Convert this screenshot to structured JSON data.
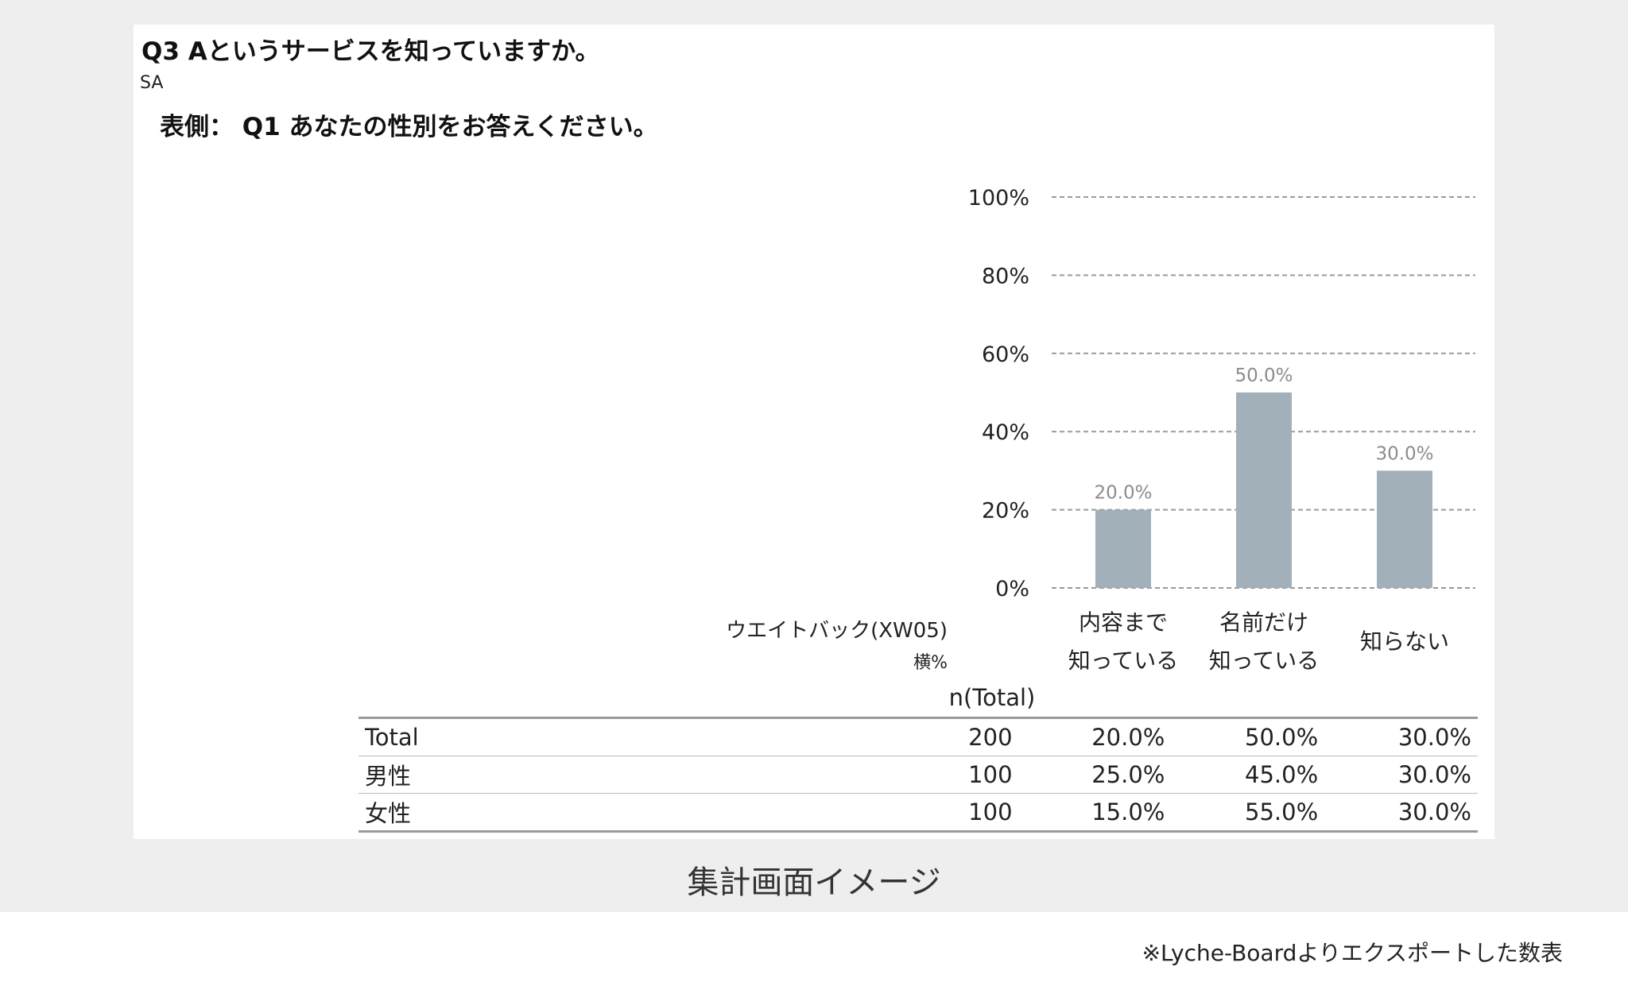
{
  "question": {
    "title": "Q3 Aというサービスを知っていますか。",
    "type": "SA",
    "side_title": "表側：  Q1 あなたの性別をお答えください。"
  },
  "table_header": {
    "weight_label": "ウエイトバック(XW05)",
    "pct_label": "横%",
    "n_label": "n(Total)"
  },
  "chart_data": {
    "type": "bar",
    "categories": [
      "内容まで\n知っている",
      "名前だけ\n知っている",
      "知らない"
    ],
    "values": [
      20.0,
      50.0,
      30.0
    ],
    "data_labels": [
      "20.0%",
      "50.0%",
      "30.0%"
    ],
    "ylim": [
      0,
      100
    ],
    "yticks": [
      0,
      20,
      40,
      60,
      80,
      100
    ],
    "ytick_labels": [
      "0%",
      "20%",
      "40%",
      "60%",
      "80%",
      "100%"
    ],
    "grid": true,
    "bar_color": "#a2b0ba",
    "data_label_color": "#8c8c8c",
    "grid_color": "#9a9a9a"
  },
  "category_labels": [
    [
      "内容まで",
      "知っている"
    ],
    [
      "名前だけ",
      "知っている"
    ],
    [
      "知らない"
    ]
  ],
  "rows": [
    {
      "label": "Total",
      "n": "200",
      "values": [
        "20.0%",
        "50.0%",
        "30.0%"
      ]
    },
    {
      "label": "男性",
      "n": "100",
      "values": [
        "25.0%",
        "45.0%",
        "30.0%"
      ]
    },
    {
      "label": "女性",
      "n": "100",
      "values": [
        "15.0%",
        "55.0%",
        "30.0%"
      ]
    }
  ],
  "caption": "集計画面イメージ",
  "footnote": "※Lyche-Boardよりエクスポートした数表"
}
